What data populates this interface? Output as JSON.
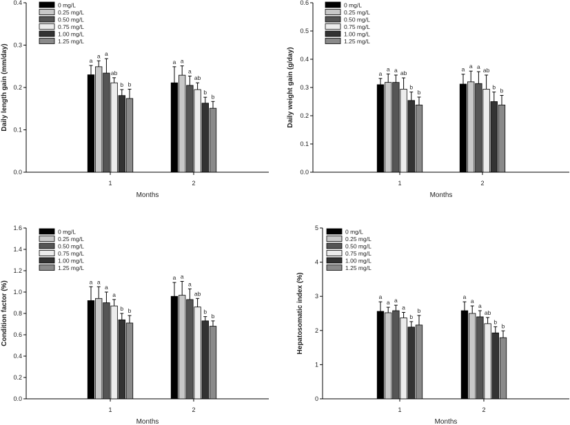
{
  "chart_data": [
    {
      "type": "bar",
      "xlabel": "Months",
      "ylabel": "Daily length gain (mm/day)",
      "categories": [
        "1",
        "2"
      ],
      "ylim": [
        0,
        0.4
      ],
      "yticks": [
        "0.0",
        "0.1",
        "0.2",
        "0.3",
        "0.4"
      ],
      "series": [
        {
          "name": "0 mg/L",
          "values": [
            0.23,
            0.211
          ],
          "errors": [
            0.022,
            0.038
          ],
          "letters": [
            "a",
            "a"
          ]
        },
        {
          "name": "0.25 mg/L",
          "values": [
            0.249,
            0.229
          ],
          "errors": [
            0.014,
            0.022
          ],
          "letters": [
            "a",
            "a"
          ]
        },
        {
          "name": "0.50 mg/L",
          "values": [
            0.234,
            0.205
          ],
          "errors": [
            0.034,
            0.022
          ],
          "letters": [
            "a",
            "a"
          ]
        },
        {
          "name": "0.75 mg/L",
          "values": [
            0.211,
            0.195
          ],
          "errors": [
            0.012,
            0.016
          ],
          "letters": [
            "ab",
            "ab"
          ]
        },
        {
          "name": "1.00 mg/L",
          "values": [
            0.181,
            0.163
          ],
          "errors": [
            0.014,
            0.014
          ],
          "letters": [
            "b",
            "b"
          ]
        },
        {
          "name": "1.25 mg/L",
          "values": [
            0.174,
            0.151
          ],
          "errors": [
            0.022,
            0.016
          ],
          "letters": [
            "b",
            "b"
          ]
        }
      ]
    },
    {
      "type": "bar",
      "xlabel": "Months",
      "ylabel": "Daily weight gain (g/day)",
      "categories": [
        "1",
        "2"
      ],
      "ylim": [
        0,
        0.6
      ],
      "yticks": [
        "0.0",
        "0.1",
        "0.2",
        "0.3",
        "0.4",
        "0.5",
        "0.6"
      ],
      "series": [
        {
          "name": "0 mg/L",
          "values": [
            0.31,
            0.312
          ],
          "errors": [
            0.022,
            0.035
          ],
          "letters": [
            "a",
            "a"
          ]
        },
        {
          "name": "0.25 mg/L",
          "values": [
            0.318,
            0.32
          ],
          "errors": [
            0.03,
            0.038
          ],
          "letters": [
            "a",
            "a"
          ]
        },
        {
          "name": "0.50 mg/L",
          "values": [
            0.318,
            0.314
          ],
          "errors": [
            0.026,
            0.042
          ],
          "letters": [
            "a",
            "a"
          ]
        },
        {
          "name": "0.75 mg/L",
          "values": [
            0.294,
            0.294
          ],
          "errors": [
            0.04,
            0.05
          ],
          "letters": [
            "ab",
            "ab"
          ]
        },
        {
          "name": "1.00 mg/L",
          "values": [
            0.254,
            0.25
          ],
          "errors": [
            0.03,
            0.034
          ],
          "letters": [
            "b",
            "b"
          ]
        },
        {
          "name": "1.25 mg/L",
          "values": [
            0.238,
            0.238
          ],
          "errors": [
            0.028,
            0.034
          ],
          "letters": [
            "b",
            "b"
          ]
        }
      ]
    },
    {
      "type": "bar",
      "xlabel": "Months",
      "ylabel": "Condition factor (%)",
      "categories": [
        "1",
        "2"
      ],
      "ylim": [
        0,
        1.6
      ],
      "yticks": [
        "0.0",
        "0.2",
        "0.4",
        "0.6",
        "0.8",
        "1.0",
        "1.2",
        "1.4",
        "1.6"
      ],
      "series": [
        {
          "name": "0 mg/L",
          "values": [
            0.92,
            0.96
          ],
          "errors": [
            0.13,
            0.13
          ],
          "letters": [
            "a",
            "a"
          ]
        },
        {
          "name": "0.25 mg/L",
          "values": [
            0.94,
            0.97
          ],
          "errors": [
            0.11,
            0.13
          ],
          "letters": [
            "a",
            "a"
          ]
        },
        {
          "name": "0.50 mg/L",
          "values": [
            0.9,
            0.93
          ],
          "errors": [
            0.1,
            0.1
          ],
          "letters": [
            "a",
            "a"
          ]
        },
        {
          "name": "0.75 mg/L",
          "values": [
            0.87,
            0.86
          ],
          "errors": [
            0.06,
            0.08
          ],
          "letters": [
            "a",
            "ab"
          ]
        },
        {
          "name": "1.00 mg/L",
          "values": [
            0.74,
            0.73
          ],
          "errors": [
            0.06,
            0.04
          ],
          "letters": [
            "b",
            "b"
          ]
        },
        {
          "name": "1.25 mg/L",
          "values": [
            0.71,
            0.68
          ],
          "errors": [
            0.07,
            0.05
          ],
          "letters": [
            "b",
            "b"
          ]
        }
      ]
    },
    {
      "type": "bar",
      "xlabel": "Months",
      "ylabel": "Hepatosomatic index (%)",
      "categories": [
        "1",
        "2"
      ],
      "ylim": [
        0,
        5
      ],
      "yticks": [
        "0",
        "1",
        "2",
        "3",
        "4",
        "5"
      ],
      "series": [
        {
          "name": "0 mg/L",
          "values": [
            2.56,
            2.58
          ],
          "errors": [
            0.28,
            0.26
          ],
          "letters": [
            "a",
            "a"
          ]
        },
        {
          "name": "0.25 mg/L",
          "values": [
            2.52,
            2.5
          ],
          "errors": [
            0.16,
            0.22
          ],
          "letters": [
            "a",
            "a"
          ]
        },
        {
          "name": "0.50 mg/L",
          "values": [
            2.58,
            2.4
          ],
          "errors": [
            0.16,
            0.18
          ],
          "letters": [
            "a",
            "a"
          ]
        },
        {
          "name": "0.75 mg/L",
          "values": [
            2.37,
            2.2
          ],
          "errors": [
            0.16,
            0.18
          ],
          "letters": [
            "a",
            "ab"
          ]
        },
        {
          "name": "1.00 mg/L",
          "values": [
            2.1,
            1.93
          ],
          "errors": [
            0.16,
            0.18
          ],
          "letters": [
            "b",
            "b"
          ]
        },
        {
          "name": "1.25 mg/L",
          "values": [
            2.16,
            1.79
          ],
          "errors": [
            0.28,
            0.2
          ],
          "letters": [
            "b",
            "b"
          ]
        }
      ]
    }
  ],
  "colors": {
    "series_fills": [
      "#000000",
      "#c8c8c8",
      "#555555",
      "#ececec",
      "#333333",
      "#8a8a8a"
    ],
    "axis": "#000000",
    "error_bars": "#000000"
  }
}
